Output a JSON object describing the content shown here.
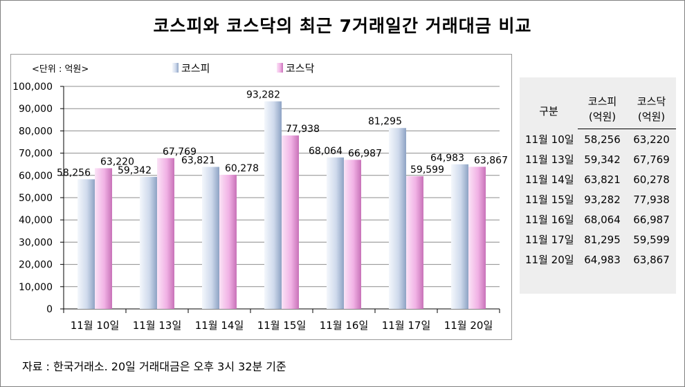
{
  "page_title": "코스피와 코스닥의 최근 7거래일간 거래대금 비교",
  "unit_label": "<단위 : 억원>",
  "source_note": "자료 : 한국거래소. 20일 거래대금은 오후 3시 32분 기준",
  "colors": {
    "kospi": "#c9d6ea",
    "kosdaq": "#f2b6e6"
  },
  "chart_data": {
    "type": "bar",
    "title": "",
    "xlabel": "",
    "ylabel": "",
    "categories": [
      "11월 10일",
      "11월 13일",
      "11월 14일",
      "11월 15일",
      "11월 16일",
      "11월 17일",
      "11월 20일"
    ],
    "series": [
      {
        "name": "코스피",
        "values": [
          58256,
          59342,
          63821,
          93282,
          68064,
          81295,
          64983
        ]
      },
      {
        "name": "코스닥",
        "values": [
          63220,
          67769,
          60278,
          77938,
          66987,
          59599,
          63867
        ]
      }
    ],
    "ylim": [
      0,
      100000
    ],
    "yticks": [
      "0",
      "10,000",
      "20,000",
      "30,000",
      "40,000",
      "50,000",
      "60,000",
      "70,000",
      "80,000",
      "90,000",
      "100,000"
    ],
    "data_labels": [
      [
        "58,256",
        "59,342",
        "63,821",
        "93,282",
        "68,064",
        "81,295",
        "64,983"
      ],
      [
        "63,220",
        "67,769",
        "60,278",
        "77,938",
        "66,987",
        "59,599",
        "63,867"
      ]
    ],
    "grid": true,
    "legend": "top"
  },
  "table": {
    "header_col1": "구분",
    "header_kospi": "코스피",
    "header_kosdaq": "코스닥",
    "header_unit": "(억원)",
    "rows": [
      {
        "date": "11월 10일",
        "kospi": "58,256",
        "kosdaq": "63,220"
      },
      {
        "date": "11월 13일",
        "kospi": "59,342",
        "kosdaq": "67,769"
      },
      {
        "date": "11월 14일",
        "kospi": "63,821",
        "kosdaq": "60,278"
      },
      {
        "date": "11월 15일",
        "kospi": "93,282",
        "kosdaq": "77,938"
      },
      {
        "date": "11월 16일",
        "kospi": "68,064",
        "kosdaq": "66,987"
      },
      {
        "date": "11월 17일",
        "kospi": "81,295",
        "kosdaq": "59,599"
      },
      {
        "date": "11월 20일",
        "kospi": "64,983",
        "kosdaq": "63,867"
      }
    ]
  }
}
